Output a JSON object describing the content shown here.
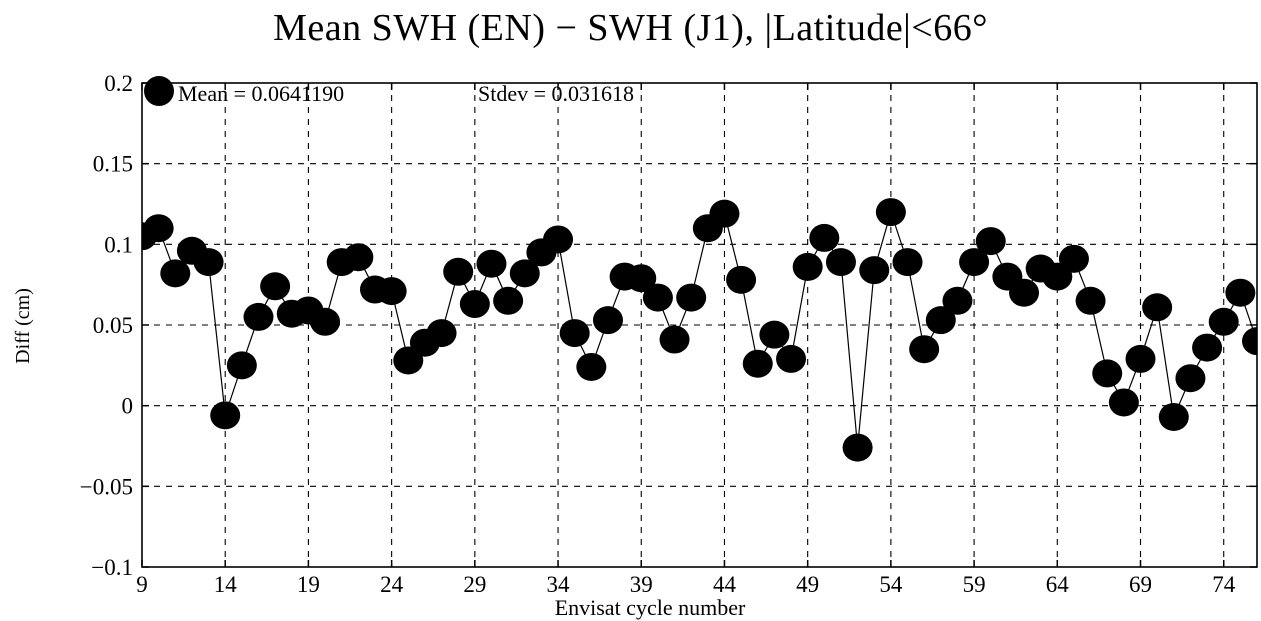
{
  "chart_data": {
    "type": "scatter",
    "title": "Mean SWH (EN) − SWH (J1), |Latitude|<66°",
    "xlabel": "Envisat cycle number",
    "ylabel": "Diff (cm)",
    "xlim": [
      9,
      76
    ],
    "ylim": [
      -0.1,
      0.2
    ],
    "xticks": [
      9,
      14,
      19,
      24,
      29,
      34,
      39,
      44,
      49,
      54,
      59,
      64,
      69,
      74
    ],
    "yticks": [
      0.2,
      0.15,
      0.1,
      0.05,
      0,
      -0.05,
      -0.1
    ],
    "ytick_labels": [
      "0.2",
      "0.15",
      "0.1",
      "0.05",
      "0",
      "−0.05",
      "−0.1"
    ],
    "grid": true,
    "connected": true,
    "annotations": {
      "mean": "Mean = 0.0641190",
      "stdev": "Stdev = 0.031618"
    },
    "series": [
      {
        "x": [
          9,
          10,
          11,
          12,
          13,
          14,
          15,
          16,
          17,
          18,
          19,
          20,
          21,
          22,
          23,
          24,
          25,
          26,
          27,
          28,
          29,
          30,
          31,
          32,
          33,
          34,
          35,
          36,
          37,
          38,
          39,
          40,
          41,
          42,
          43,
          44,
          45,
          46,
          47,
          48,
          49,
          50,
          51,
          52,
          53,
          54,
          55,
          56,
          57,
          58,
          59,
          60,
          61,
          62,
          63,
          64,
          65,
          66,
          67,
          68,
          69,
          70,
          71,
          72,
          73,
          74,
          75,
          76
        ],
        "values": [
          0.105,
          0.11,
          0.082,
          0.096,
          0.089,
          -0.006,
          0.025,
          0.055,
          0.074,
          0.057,
          0.059,
          0.052,
          0.089,
          0.092,
          0.072,
          0.071,
          0.028,
          0.039,
          0.045,
          0.083,
          0.063,
          0.088,
          0.065,
          0.082,
          0.095,
          0.103,
          0.045,
          0.024,
          0.053,
          0.08,
          0.079,
          0.067,
          0.041,
          0.067,
          0.11,
          0.119,
          0.078,
          0.026,
          0.044,
          0.029,
          0.086,
          0.104,
          0.089,
          -0.026,
          0.084,
          0.12,
          0.089,
          0.035,
          0.053,
          0.065,
          0.089,
          0.102,
          0.08,
          0.07,
          0.085,
          0.08,
          0.091,
          0.065,
          0.02,
          0.002,
          0.029,
          0.061,
          -0.007,
          0.017,
          0.036,
          0.052,
          0.07,
          0.04
        ]
      }
    ]
  }
}
